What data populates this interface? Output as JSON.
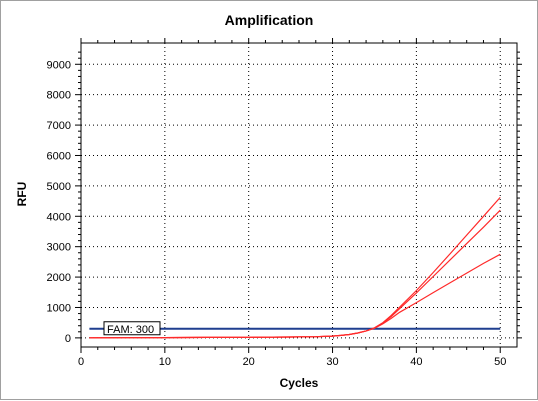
{
  "chart_data": {
    "type": "line",
    "title": "Amplification",
    "xlabel": "Cycles",
    "ylabel": "RFU",
    "xlim": [
      0,
      52
    ],
    "ylim": [
      -300,
      9700
    ],
    "xticks": [
      0,
      10,
      20,
      30,
      40,
      50
    ],
    "yticks": [
      0,
      1000,
      2000,
      3000,
      4000,
      5000,
      6000,
      7000,
      8000,
      9000
    ],
    "grid": true,
    "threshold": {
      "label": "FAM: 300",
      "value": 300,
      "color": "#1f3f8f"
    },
    "series_color": "#ff2a2a",
    "series": [
      {
        "x": [
          1,
          5,
          10,
          15,
          20,
          25,
          28,
          30,
          31,
          32,
          33,
          34,
          35,
          36,
          37,
          38,
          40,
          42,
          44,
          46,
          48,
          50
        ],
        "values": [
          0,
          5,
          10,
          15,
          20,
          30,
          40,
          60,
          80,
          110,
          160,
          230,
          320,
          480,
          700,
          960,
          1480,
          2020,
          2560,
          3100,
          3640,
          4200
        ]
      },
      {
        "x": [
          1,
          5,
          10,
          15,
          20,
          25,
          28,
          30,
          31,
          32,
          33,
          34,
          35,
          36,
          37,
          38,
          40,
          42,
          44,
          46,
          48,
          50
        ],
        "values": [
          0,
          5,
          10,
          15,
          20,
          30,
          40,
          60,
          80,
          110,
          160,
          230,
          330,
          500,
          740,
          1010,
          1560,
          2150,
          2760,
          3380,
          4000,
          4620
        ]
      },
      {
        "x": [
          1,
          5,
          10,
          15,
          20,
          25,
          28,
          30,
          31,
          32,
          33,
          34,
          35,
          36,
          37,
          38,
          40,
          42,
          44,
          46,
          48,
          50
        ],
        "values": [
          0,
          5,
          10,
          15,
          20,
          30,
          40,
          60,
          80,
          110,
          160,
          230,
          320,
          460,
          640,
          840,
          1160,
          1490,
          1810,
          2130,
          2450,
          2750
        ]
      }
    ]
  }
}
